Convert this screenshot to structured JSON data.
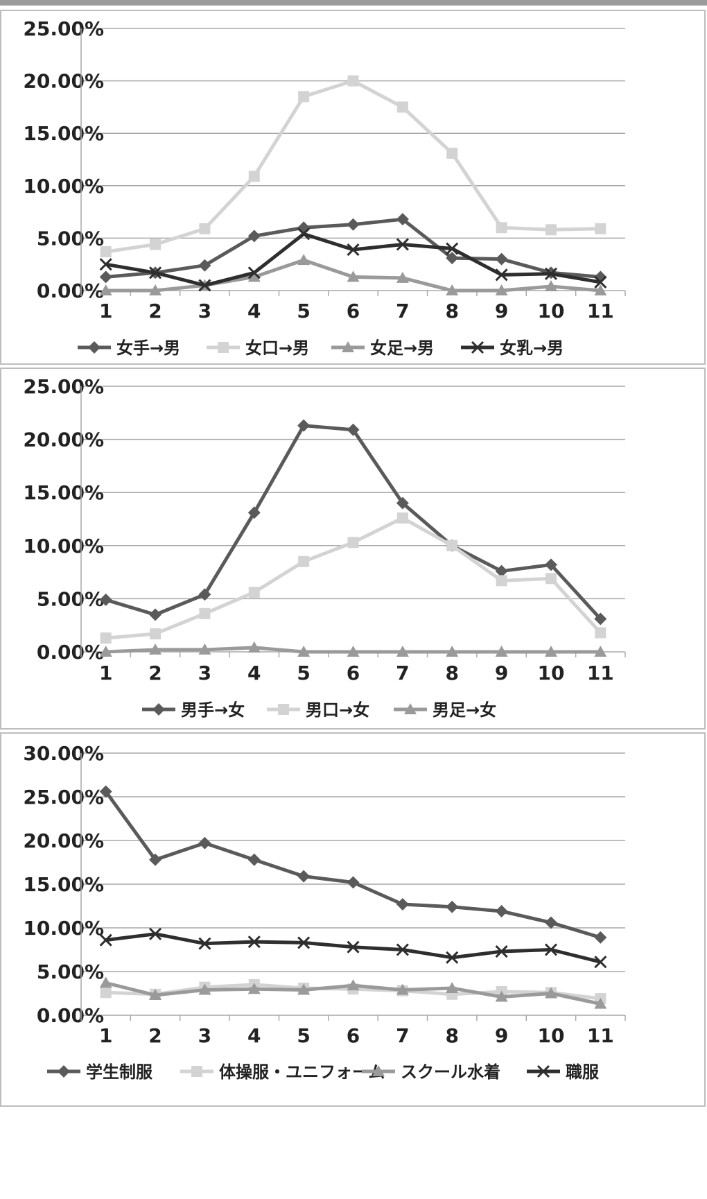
{
  "chart_data": [
    {
      "type": "line",
      "categories": [
        "1",
        "2",
        "3",
        "4",
        "5",
        "6",
        "7",
        "8",
        "9",
        "10",
        "11"
      ],
      "ylim": [
        0,
        25
      ],
      "yticks": [
        "0.00%",
        "5.00%",
        "10.00%",
        "15.00%",
        "20.00%",
        "25.00%"
      ],
      "ytick_values": [
        0,
        5,
        10,
        15,
        20,
        25
      ],
      "grid": true,
      "legend_position": "bottom",
      "series": [
        {
          "name": "女手→男",
          "marker": "diamond",
          "color": "#5a5a5a",
          "values": [
            1.3,
            1.7,
            2.4,
            5.2,
            6.0,
            6.3,
            6.8,
            3.1,
            3.0,
            1.7,
            1.3
          ]
        },
        {
          "name": "女口→男",
          "marker": "square",
          "color": "#d3d3d3",
          "values": [
            3.7,
            4.4,
            5.9,
            10.9,
            18.5,
            20.0,
            17.5,
            13.1,
            6.0,
            5.8,
            5.9
          ]
        },
        {
          "name": "女足→男",
          "marker": "triangle",
          "color": "#9a9a9a",
          "values": [
            0.0,
            0.0,
            0.5,
            1.3,
            2.9,
            1.3,
            1.2,
            0.0,
            0.0,
            0.4,
            0.0
          ]
        },
        {
          "name": "女乳→男",
          "marker": "x",
          "color": "#2e2e2e",
          "values": [
            2.5,
            1.7,
            0.5,
            1.7,
            5.4,
            3.9,
            4.4,
            4.0,
            1.5,
            1.6,
            0.8
          ]
        }
      ]
    },
    {
      "type": "line",
      "categories": [
        "1",
        "2",
        "3",
        "4",
        "5",
        "6",
        "7",
        "8",
        "9",
        "10",
        "11"
      ],
      "ylim": [
        0,
        25
      ],
      "yticks": [
        "0.00%",
        "5.00%",
        "10.00%",
        "15.00%",
        "20.00%",
        "25.00%"
      ],
      "ytick_values": [
        0,
        5,
        10,
        15,
        20,
        25
      ],
      "grid": true,
      "legend_position": "bottom",
      "series": [
        {
          "name": "男手→女",
          "marker": "diamond",
          "color": "#5a5a5a",
          "values": [
            4.9,
            3.5,
            5.4,
            13.1,
            21.3,
            20.9,
            14.0,
            10.0,
            7.6,
            8.2,
            3.1
          ]
        },
        {
          "name": "男口→女",
          "marker": "square",
          "color": "#d3d3d3",
          "values": [
            1.3,
            1.7,
            3.6,
            5.6,
            8.5,
            10.3,
            12.6,
            10.0,
            6.7,
            6.9,
            1.8
          ]
        },
        {
          "name": "男足→女",
          "marker": "triangle",
          "color": "#9a9a9a",
          "values": [
            0.0,
            0.2,
            0.2,
            0.4,
            0.0,
            0.0,
            0.0,
            0.0,
            0.0,
            0.0,
            0.0
          ]
        }
      ]
    },
    {
      "type": "line",
      "categories": [
        "1",
        "2",
        "3",
        "4",
        "5",
        "6",
        "7",
        "8",
        "9",
        "10",
        "11"
      ],
      "ylim": [
        0,
        30
      ],
      "yticks": [
        "0.00%",
        "5.00%",
        "10.00%",
        "15.00%",
        "20.00%",
        "25.00%",
        "30.00%"
      ],
      "ytick_values": [
        0,
        5,
        10,
        15,
        20,
        25,
        30
      ],
      "grid": true,
      "legend_position": "bottom",
      "series": [
        {
          "name": "学生制服",
          "marker": "diamond",
          "color": "#5a5a5a",
          "values": [
            25.6,
            17.8,
            19.7,
            17.8,
            15.9,
            15.2,
            12.7,
            12.4,
            11.9,
            10.6,
            8.9
          ]
        },
        {
          "name": "体操服・ユニフォーム",
          "marker": "square",
          "color": "#d3d3d3",
          "values": [
            2.6,
            2.4,
            3.2,
            3.5,
            3.1,
            3.0,
            2.8,
            2.4,
            2.7,
            2.6,
            1.9
          ]
        },
        {
          "name": "スクール水着",
          "marker": "triangle",
          "color": "#9a9a9a",
          "values": [
            3.7,
            2.3,
            2.9,
            3.0,
            2.9,
            3.4,
            2.9,
            3.1,
            2.1,
            2.5,
            1.3
          ]
        },
        {
          "name": "職服",
          "marker": "x",
          "color": "#2e2e2e",
          "values": [
            8.6,
            9.3,
            8.2,
            8.4,
            8.3,
            7.8,
            7.5,
            6.6,
            7.3,
            7.5,
            6.1
          ]
        }
      ]
    }
  ]
}
